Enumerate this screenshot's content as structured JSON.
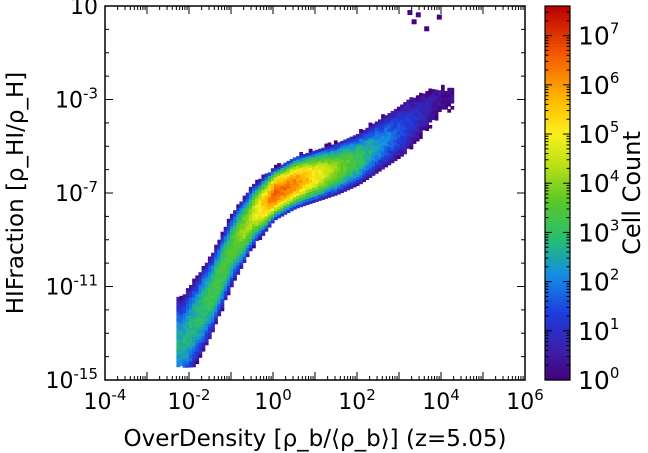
{
  "chart_data": {
    "type": "heatmap",
    "xlabel": "OverDensity [ρ_b/⟨ρ_b⟩] (z=5.05)",
    "ylabel": "HIFraction [ρ_HI/ρ_H]",
    "x_scale": "log",
    "y_scale": "log",
    "xlim": [
      0.0001,
      1000000
    ],
    "ylim": [
      1e-15,
      10
    ],
    "x_ticks": [
      {
        "value": 0.0001,
        "base": "10",
        "exp": "-4"
      },
      {
        "value": 0.01,
        "base": "10",
        "exp": "-2"
      },
      {
        "value": 1,
        "base": "10",
        "exp": "0"
      },
      {
        "value": 100,
        "base": "10",
        "exp": "2"
      },
      {
        "value": 10000,
        "base": "10",
        "exp": "4"
      },
      {
        "value": 1000000,
        "base": "10",
        "exp": "6"
      }
    ],
    "y_ticks": [
      {
        "value": 1e-15,
        "base": "10",
        "exp": "-15"
      },
      {
        "value": 1e-11,
        "base": "10",
        "exp": "-11"
      },
      {
        "value": 1e-07,
        "base": "10",
        "exp": "-7"
      },
      {
        "value": 0.001,
        "base": "10",
        "exp": "-3"
      },
      {
        "value": 10,
        "base": "10",
        "exp": ""
      }
    ],
    "colorbar": {
      "label": "Cell Count",
      "scale": "log",
      "range": [
        1,
        40000000
      ],
      "colormap": "spectral_r",
      "ticks": [
        {
          "value": 1,
          "base": "10",
          "exp": "0"
        },
        {
          "value": 10,
          "base": "10",
          "exp": "1"
        },
        {
          "value": 100,
          "base": "10",
          "exp": "2"
        },
        {
          "value": 1000,
          "base": "10",
          "exp": "3"
        },
        {
          "value": 10000,
          "base": "10",
          "exp": "4"
        },
        {
          "value": 100000,
          "base": "10",
          "exp": "5"
        },
        {
          "value": 1000000,
          "base": "10",
          "exp": "6"
        },
        {
          "value": 10000000,
          "base": "10",
          "exp": "7"
        }
      ]
    },
    "distribution": {
      "x_range_log10": [
        -2.3,
        4.3
      ],
      "ridge": [
        {
          "x_log10": -2.2,
          "y_log10": -13.5,
          "peak_count_log10": 2.6
        },
        {
          "x_log10": -1.5,
          "y_log10": -11.4,
          "peak_count_log10": 3.2
        },
        {
          "x_log10": -1.0,
          "y_log10": -9.4,
          "peak_count_log10": 3.6
        },
        {
          "x_log10": -0.5,
          "y_log10": -8.0,
          "peak_count_log10": 4.6
        },
        {
          "x_log10": 0.0,
          "y_log10": -7.1,
          "peak_count_log10": 6.6
        },
        {
          "x_log10": 0.5,
          "y_log10": -6.6,
          "peak_count_log10": 6.2
        },
        {
          "x_log10": 1.0,
          "y_log10": -6.3,
          "peak_count_log10": 5.1
        },
        {
          "x_log10": 1.5,
          "y_log10": -6.0,
          "peak_count_log10": 4.0
        },
        {
          "x_log10": 2.0,
          "y_log10": -5.6,
          "peak_count_log10": 3.2
        },
        {
          "x_log10": 2.5,
          "y_log10": -5.0,
          "peak_count_log10": 2.3
        },
        {
          "x_log10": 3.0,
          "y_log10": -4.4,
          "peak_count_log10": 1.5
        },
        {
          "x_log10": 3.5,
          "y_log10": -3.7,
          "peak_count_log10": 0.8
        },
        {
          "x_log10": 4.0,
          "y_log10": -3.0,
          "peak_count_log10": 0.3
        }
      ],
      "outliers": [
        {
          "x_log10": 3.2,
          "y_log10": 0.7,
          "count_log10": 0.2
        },
        {
          "x_log10": 3.4,
          "y_log10": 0.6,
          "count_log10": 0.2
        },
        {
          "x_log10": 3.3,
          "y_log10": 0.3,
          "count_log10": 0.1
        },
        {
          "x_log10": 3.9,
          "y_log10": 0.5,
          "count_log10": 0.0
        },
        {
          "x_log10": 3.6,
          "y_log10": 0.0,
          "count_log10": 0.1
        }
      ]
    }
  }
}
